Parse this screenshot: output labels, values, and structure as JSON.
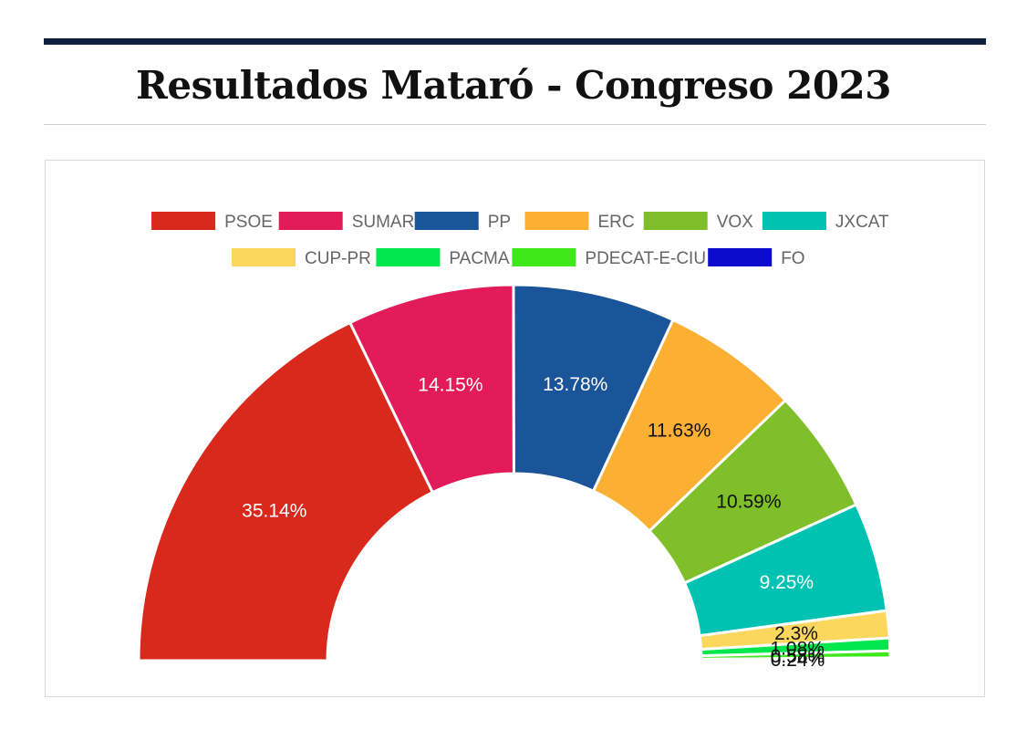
{
  "header": {
    "title": "Resultados Mataró - Congreso 2023"
  },
  "chart_data": {
    "type": "pie",
    "variant": "half-donut",
    "title": "Resultados Mataró - Congreso 2023",
    "legend_position": "top",
    "categories": [
      "PSOE",
      "SUMAR",
      "PP",
      "ERC",
      "VOX",
      "JXCAT",
      "CUP-PR",
      "PACMA",
      "PDECAT-E-CIU",
      "FO"
    ],
    "values": [
      35.14,
      14.15,
      13.78,
      11.63,
      10.59,
      9.25,
      2.3,
      1.08,
      0.58,
      0.24
    ],
    "labels": [
      "35.14%",
      "14.15%",
      "13.78%",
      "11.63%",
      "10.59%",
      "9.25%",
      "2.3%",
      "1.08%",
      "0.58%",
      "0.24%"
    ],
    "colors": [
      "#d9291c",
      "#e31b5a",
      "#1a5499",
      "#fbb034",
      "#7fbf2a",
      "#00c2b2",
      "#fbd85d",
      "#00e64d",
      "#3ee81a",
      "#0c0ccc"
    ],
    "label_colors": [
      "#ffffff",
      "#ffffff",
      "#ffffff",
      "#111111",
      "#111111",
      "#ffffff",
      "#111111",
      "#111111",
      "#111111",
      "#111111"
    ]
  }
}
